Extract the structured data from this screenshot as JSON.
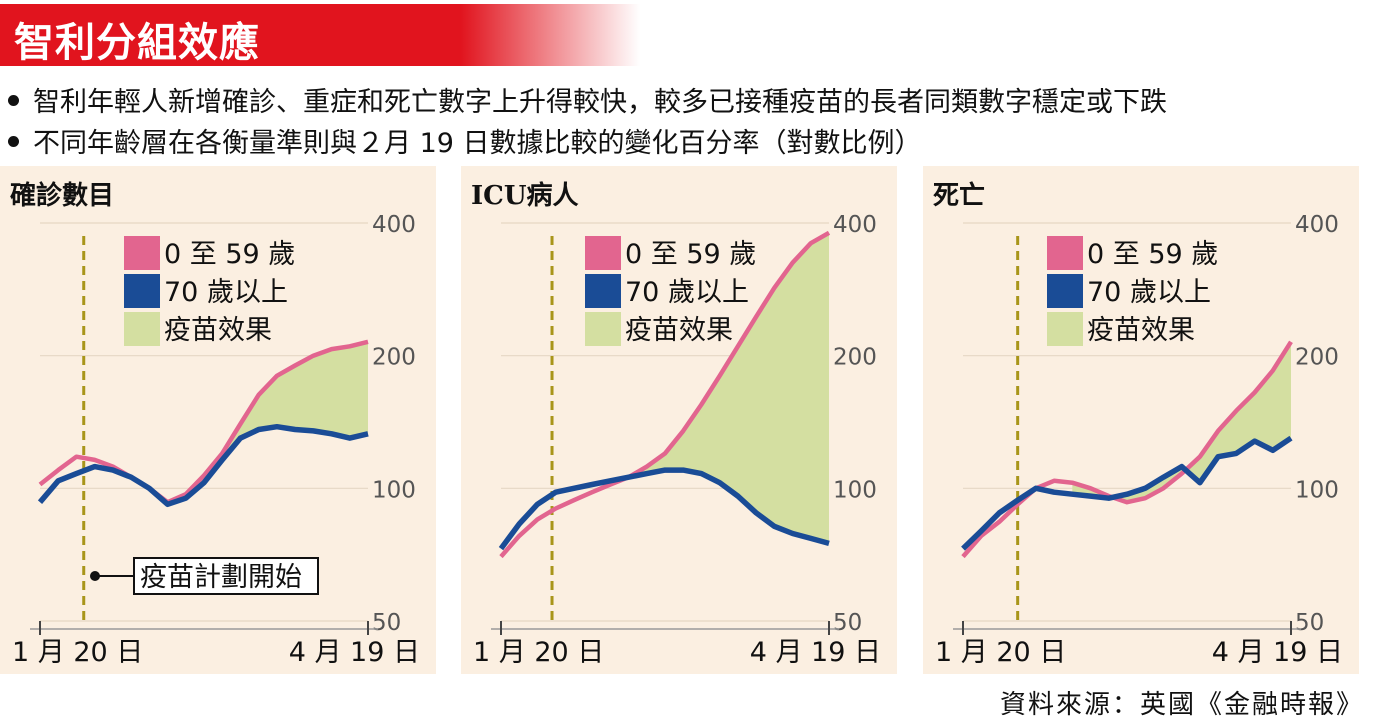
{
  "header": {
    "title": "智利分組效應",
    "bullets": [
      "智利年輕人新增確診、重症和死亡數字上升得較快，較多已接種疫苗的長者同類數字穩定或下跌",
      "不同年齡層在各衡量準則與２月 19 日數據比較的變化百分率（對數比例）"
    ]
  },
  "colors": {
    "young": "#e2658f",
    "old": "#1a4c96",
    "effect": "#d4dfa1",
    "panel_bg": "#fbefe1",
    "accent": "#e1141e",
    "vline": "#a8951a"
  },
  "legend": {
    "young": "0 至 59 歲",
    "old": "70 歲以上",
    "effect": "疫苗效果"
  },
  "annotation": {
    "vaccine_start": "疫苗計劃開始"
  },
  "source": "資料來源：英國《金融時報》",
  "chart_data": [
    {
      "type": "line",
      "title": "確診數目",
      "yscale": "log",
      "ylim": [
        50,
        400
      ],
      "yticks": [
        400,
        200,
        100,
        50
      ],
      "x_range_days": [
        0,
        90
      ],
      "xtick_labels": [
        "1 月 20 日",
        "4 月 19 日"
      ],
      "vaccine_start_day": 12,
      "series": [
        {
          "name": "0 至 59 歲",
          "x": [
            0,
            5,
            10,
            15,
            20,
            25,
            30,
            35,
            40,
            45,
            50,
            55,
            60,
            65,
            70,
            75,
            80,
            85,
            90
          ],
          "y": [
            102,
            110,
            118,
            116,
            112,
            106,
            100,
            93,
            97,
            107,
            120,
            140,
            163,
            180,
            190,
            200,
            207,
            210,
            215
          ]
        },
        {
          "name": "70 歲以上",
          "x": [
            0,
            5,
            10,
            15,
            20,
            25,
            30,
            35,
            40,
            45,
            50,
            55,
            60,
            65,
            70,
            75,
            80,
            85,
            90
          ],
          "y": [
            93,
            104,
            108,
            112,
            110,
            106,
            100,
            92,
            95,
            103,
            116,
            130,
            136,
            138,
            136,
            135,
            133,
            130,
            133
          ]
        }
      ]
    },
    {
      "type": "line",
      "title": "ICU病人",
      "yscale": "log",
      "ylim": [
        50,
        400
      ],
      "yticks": [
        400,
        200,
        100,
        50
      ],
      "x_range_days": [
        0,
        90
      ],
      "xtick_labels": [
        "1 月 20 日",
        "4 月 19 日"
      ],
      "vaccine_start_day": 14,
      "series": [
        {
          "name": "0 至 59 歲",
          "x": [
            0,
            5,
            10,
            15,
            20,
            25,
            30,
            35,
            40,
            45,
            50,
            55,
            60,
            65,
            70,
            75,
            80,
            85,
            90
          ],
          "y": [
            70,
            78,
            85,
            90,
            94,
            98,
            102,
            106,
            112,
            120,
            135,
            155,
            180,
            210,
            245,
            285,
            325,
            360,
            380
          ]
        },
        {
          "name": "70 歲以上",
          "x": [
            0,
            5,
            10,
            15,
            20,
            25,
            30,
            35,
            40,
            45,
            50,
            55,
            60,
            65,
            70,
            75,
            80,
            85,
            90
          ],
          "y": [
            73,
            83,
            92,
            98,
            100,
            102,
            104,
            106,
            108,
            110,
            110,
            108,
            103,
            96,
            88,
            82,
            79,
            77,
            75
          ]
        }
      ]
    },
    {
      "type": "line",
      "title": "死亡",
      "yscale": "log",
      "ylim": [
        50,
        400
      ],
      "yticks": [
        400,
        200,
        100,
        50
      ],
      "x_range_days": [
        0,
        90
      ],
      "xtick_labels": [
        "1 月 20 日",
        "4 月 19 日"
      ],
      "vaccine_start_day": 15,
      "series": [
        {
          "name": "0 至 59 歲",
          "x": [
            0,
            5,
            10,
            15,
            20,
            25,
            30,
            35,
            40,
            45,
            50,
            55,
            60,
            65,
            70,
            75,
            80,
            85,
            90
          ],
          "y": [
            70,
            78,
            84,
            92,
            100,
            104,
            103,
            100,
            96,
            93,
            95,
            100,
            108,
            118,
            135,
            150,
            165,
            185,
            215
          ]
        },
        {
          "name": "70 歲以上",
          "x": [
            0,
            5,
            10,
            15,
            20,
            25,
            30,
            35,
            40,
            45,
            50,
            55,
            60,
            65,
            70,
            75,
            80,
            85,
            90
          ],
          "y": [
            73,
            80,
            88,
            94,
            100,
            98,
            97,
            96,
            95,
            97,
            100,
            106,
            112,
            103,
            118,
            120,
            128,
            122,
            130
          ]
        }
      ]
    }
  ]
}
